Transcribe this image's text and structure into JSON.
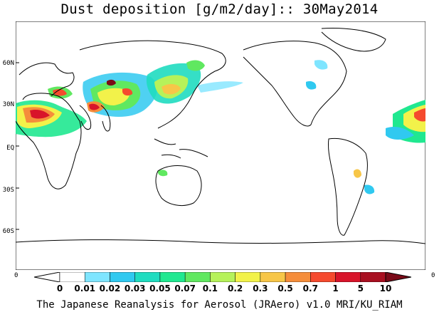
{
  "title": "Dust deposition [g/m2/day]:: 30May2014",
  "lat_labels": [
    "60N",
    "30N",
    "EQ",
    "30S",
    "60S"
  ],
  "edge_labels": {
    "left": "0",
    "right": "0"
  },
  "colorbar": {
    "labels": [
      "0",
      "0.01",
      "0.02",
      "0.03",
      "0.05",
      "0.07",
      "0.1",
      "0.2",
      "0.3",
      "0.5",
      "0.7",
      "1",
      "5",
      "10"
    ],
    "colors": [
      "#ffffff",
      "#7fe5ff",
      "#30c9f0",
      "#1fdcc0",
      "#20e890",
      "#60e860",
      "#b6f25a",
      "#f2f24a",
      "#f7c648",
      "#f58d3b",
      "#f54a2e",
      "#d8142a",
      "#a80f20"
    ],
    "under_color": "#ffffff",
    "over_color": "#7a0a18"
  },
  "credit": "The Japanese Reanalysis for Aerosol (JRAero) v1.0 MRI/KU_RIAM"
}
